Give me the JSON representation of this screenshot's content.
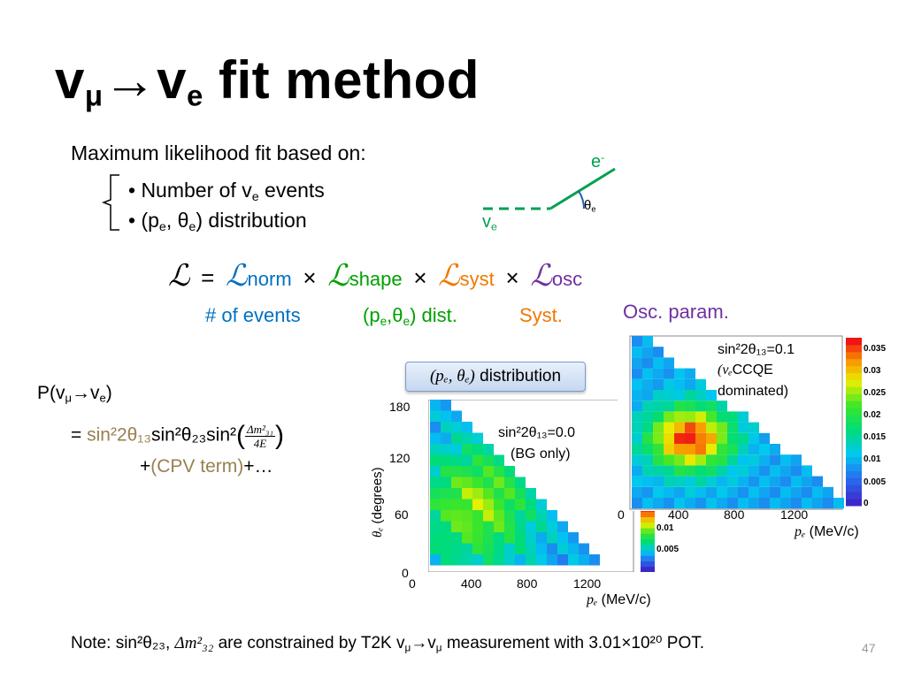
{
  "slide": {
    "title": {
      "pre": "v",
      "sub1": "μ",
      "arrow": "→",
      "mid": "v",
      "sub2": "e",
      "rest": " fit method"
    },
    "intro": "Maximum likelihood fit based on:",
    "bullets": [
      {
        "pre": "• Number of v",
        "sub": "e",
        "post": " events"
      },
      {
        "pre": "• (p",
        "sub": "e",
        "mid": ", θ",
        "sub2": "e",
        "post": ") distribution"
      }
    ],
    "diagram": {
      "electron_label": "e",
      "electron_sup": "-",
      "neutrino_label": "v",
      "neutrino_sub": "e",
      "angle_label": "θ",
      "angle_sub": "e"
    },
    "likelihood": {
      "L": "ℒ",
      "equals": "=",
      "times": "×",
      "terms": [
        {
          "sub": "norm",
          "color": "#0070c0"
        },
        {
          "sub": "shape",
          "color": "#00a000"
        },
        {
          "sub": "syst",
          "color": "#f07800"
        },
        {
          "sub": "osc",
          "color": "#7030a0"
        }
      ],
      "labels": {
        "norm": "# of events",
        "shape_pre": "(p",
        "shape_sub1": "e",
        "shape_mid": ",θ",
        "shape_sub2": "e",
        "shape_post": ") dist.",
        "syst": "Syst.",
        "osc": "Osc. param."
      }
    },
    "probability": {
      "line1_pre": "P(v",
      "line1_sub1": "μ",
      "line1_arrow": "→",
      "line1_mid": "v",
      "line1_sub2": "e",
      "line1_post": ")",
      "line2_eq": "= ",
      "line2_colored": "sin²2θ₁₃",
      "line2_rest": "sin²θ₂₃sin²",
      "frac_num": "Δm²₃₁",
      "frac_den": "4E",
      "line3_plus": "+",
      "line3_colored": "(CPV term)",
      "line3_post": "+…"
    },
    "dist_box": {
      "math": "(pₑ, θₑ)",
      "text": " distribution"
    },
    "plot_bg": {
      "annotation_line1": "sin²2θ₁₃=0.0",
      "annotation_line2": "(BG only)",
      "y_ticks": [
        "180",
        "120",
        "60",
        "0"
      ],
      "x_ticks": [
        "0",
        "400",
        "800",
        "1200"
      ],
      "y_label_math": "θₑ",
      "y_label_text": " (degrees)",
      "x_label_math": "pₑ",
      "x_label_text": " (MeV/c)",
      "cb_ticks": [
        "0.01",
        "0.005"
      ]
    },
    "plot_sig": {
      "annotation_line1": "sin²2θ₁₃=0.1",
      "annotation_line2_math": "(νₑ",
      "annotation_line2_text": "CCQE",
      "annotation_line3": "dominated)",
      "x_ticks": [
        "0",
        "400",
        "800",
        "1200"
      ],
      "x_label_math": "pₑ",
      "x_label_text": " (MeV/c)",
      "cb_ticks": [
        "0.035",
        "0.03",
        "0.025",
        "0.02",
        "0.015",
        "0.01",
        "0.005",
        "0"
      ]
    },
    "note": {
      "pre": "Note: sin²θ₂₃, ",
      "math": "Δm²₃₂",
      "post_pre": " are constrained by T2K v",
      "sub1": "μ",
      "arrow": "→",
      "mid": "v",
      "sub2": "μ",
      "post": " measurement with 3.01×10²⁰ POT."
    },
    "page_number": "47"
  }
}
